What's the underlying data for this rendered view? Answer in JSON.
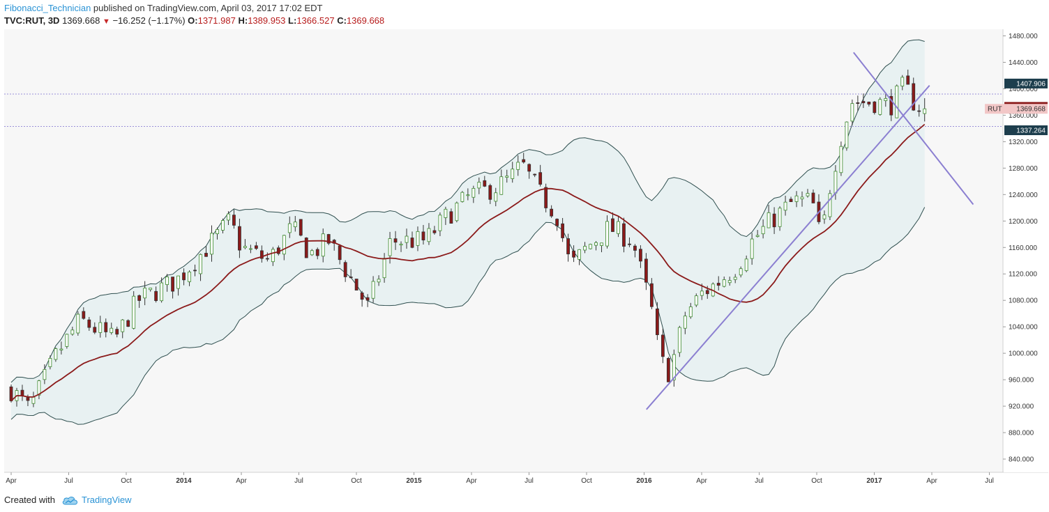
{
  "header": {
    "author": "Fibonacci_Technician",
    "published": " published on TradingView.com, April 03, 2017 17:02 EDT",
    "symbol": "TVC:RUT, 3D",
    "last": "1369.668",
    "change_arrow": "▼",
    "change": "−16.252 (−1.17%)",
    "o_label": "O:",
    "o_value": "1371.987",
    "h_label": "H:",
    "h_value": "1389.953",
    "l_label": "L:",
    "l_value": "1366.527",
    "c_label": "C:",
    "c_value": "1369.668"
  },
  "footer": {
    "created_with": "Created with",
    "brand": "TradingView",
    "logo_icon": "tradingview-cloud-icon"
  },
  "colors": {
    "candle_up": "#3b8a2a",
    "candle_down": "#8b1a1a",
    "band_line": "#2f4f4f",
    "band_fill": "#e8f1f2",
    "ma_line": "#8b1a1a",
    "trendline": "#8b7fd1",
    "hline": "#9a8fd9",
    "tag_top": "#1d3e4d",
    "tag_ma": "#8b1a1a",
    "tag_price": "#f2c7c7"
  },
  "chart_data": {
    "type": "candlestick",
    "ylim": [
      820,
      1490
    ],
    "yticks": [
      840,
      880,
      920,
      960,
      1000,
      1040,
      1080,
      1120,
      1160,
      1200,
      1240,
      1280,
      1320,
      1360,
      1400,
      1440,
      1480
    ],
    "xlabels": [
      {
        "t": 0,
        "label": "Apr",
        "year": false
      },
      {
        "t": 0.25,
        "label": "Jul",
        "year": false
      },
      {
        "t": 0.5,
        "label": "Oct",
        "year": false
      },
      {
        "t": 0.75,
        "label": "2014",
        "year": true
      },
      {
        "t": 1.0,
        "label": "Apr",
        "year": false
      },
      {
        "t": 1.25,
        "label": "Jul",
        "year": false
      },
      {
        "t": 1.5,
        "label": "Oct",
        "year": false
      },
      {
        "t": 1.75,
        "label": "2015",
        "year": true
      },
      {
        "t": 2.0,
        "label": "Apr",
        "year": false
      },
      {
        "t": 2.25,
        "label": "Jul",
        "year": false
      },
      {
        "t": 2.5,
        "label": "Oct",
        "year": false
      },
      {
        "t": 2.75,
        "label": "2016",
        "year": true
      },
      {
        "t": 3.0,
        "label": "Apr",
        "year": false
      },
      {
        "t": 3.25,
        "label": "Jul",
        "year": false
      },
      {
        "t": 3.5,
        "label": "Oct",
        "year": false
      },
      {
        "t": 3.75,
        "label": "2017",
        "year": true
      },
      {
        "t": 4.0,
        "label": "Apr",
        "year": false
      },
      {
        "t": 4.25,
        "label": "Jul",
        "year": false
      }
    ],
    "price_anchors": [
      [
        0,
        945
      ],
      [
        0.08,
        915
      ],
      [
        0.2,
        1000
      ],
      [
        0.3,
        1050
      ],
      [
        0.45,
        1020
      ],
      [
        0.55,
        1080
      ],
      [
        0.72,
        1110
      ],
      [
        0.85,
        1160
      ],
      [
        0.95,
        1200
      ],
      [
        1.0,
        1160
      ],
      [
        1.12,
        1140
      ],
      [
        1.22,
        1190
      ],
      [
        1.3,
        1150
      ],
      [
        1.38,
        1170
      ],
      [
        1.48,
        1110
      ],
      [
        1.55,
        1070
      ],
      [
        1.65,
        1170
      ],
      [
        1.75,
        1170
      ],
      [
        1.8,
        1170
      ],
      [
        1.9,
        1210
      ],
      [
        2.0,
        1240
      ],
      [
        2.1,
        1250
      ],
      [
        2.17,
        1265
      ],
      [
        2.22,
        1285
      ],
      [
        2.3,
        1240
      ],
      [
        2.37,
        1210
      ],
      [
        2.43,
        1130
      ],
      [
        2.5,
        1160
      ],
      [
        2.6,
        1190
      ],
      [
        2.7,
        1170
      ],
      [
        2.78,
        1070
      ],
      [
        2.82,
        990
      ],
      [
        2.86,
        970
      ],
      [
        2.93,
        1060
      ],
      [
        3.0,
        1090
      ],
      [
        3.08,
        1110
      ],
      [
        3.15,
        1130
      ],
      [
        3.22,
        1170
      ],
      [
        3.3,
        1200
      ],
      [
        3.4,
        1230
      ],
      [
        3.48,
        1230
      ],
      [
        3.52,
        1170
      ],
      [
        3.55,
        1240
      ],
      [
        3.6,
        1320
      ],
      [
        3.65,
        1380
      ],
      [
        3.75,
        1380
      ],
      [
        3.82,
        1375
      ],
      [
        3.88,
        1405
      ],
      [
        3.93,
        1375
      ],
      [
        3.97,
        1370
      ]
    ],
    "last_price": 1369.668,
    "levels": {
      "upper_band": 1407.906,
      "ma": 1372.585,
      "price": 1369.668,
      "lower_band": 1337.264
    },
    "level_label": "RUT",
    "hlines": [
      1392,
      1343
    ],
    "trendlines": [
      {
        "t1": 2.76,
        "p1": 915,
        "t2": 3.99,
        "p2": 1405
      },
      {
        "t1": 3.66,
        "p1": 1455,
        "t2": 4.18,
        "p2": 1225
      }
    ]
  }
}
